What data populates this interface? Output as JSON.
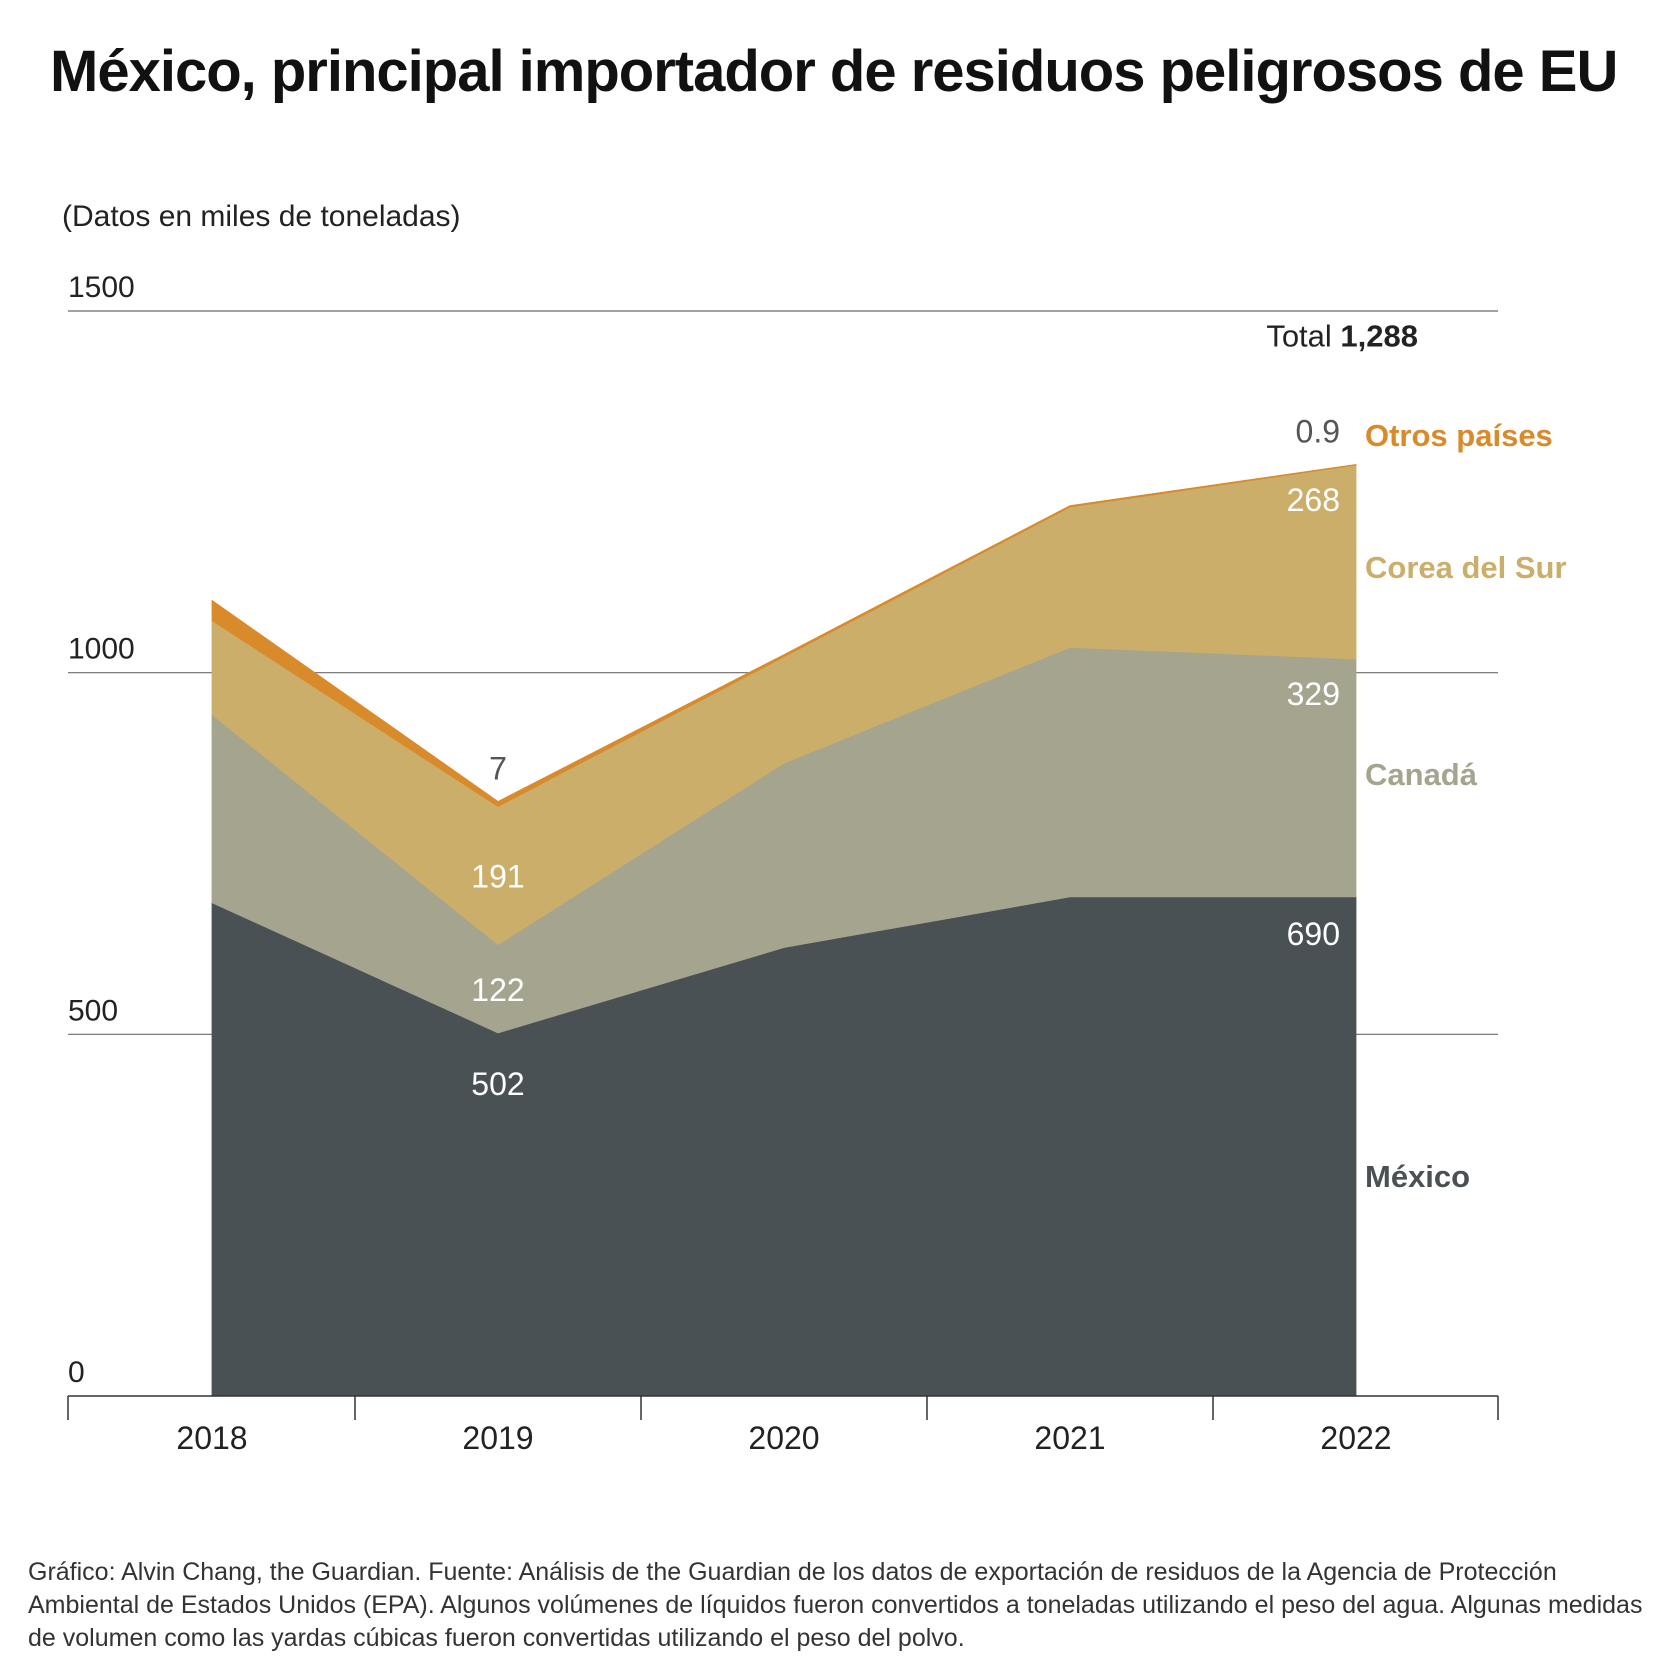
{
  "title": "México, principal importador de residuos peligrosos de EU",
  "subtitle": "(Datos en miles de toneladas)",
  "source": "Gráfico: Alvin Chang, the Guardian. Fuente: Análisis de the Guardian de los datos de exportación de residuos de la Agencia de Protección Ambiental de Estados Unidos (EPA). Algunos volúmenes de líquidos fueron convertidos a toneladas utilizando el peso del agua. Algunas medidas de volumen como las yardas cúbicas fueron convertidas utilizando el peso del polvo.",
  "chart_data": {
    "type": "area",
    "stacked": true,
    "x": [
      "2018",
      "2019",
      "2020",
      "2021",
      "2022"
    ],
    "yticks": [
      0,
      500,
      1000,
      1500
    ],
    "ylim": [
      0,
      1500
    ],
    "series": [
      {
        "name": "México",
        "color": "#4a5155",
        "values": [
          682,
          502,
          620,
          690,
          690
        ]
      },
      {
        "name": "Canadá",
        "color": "#a5a58f",
        "values": [
          260,
          122,
          255,
          345,
          329
        ]
      },
      {
        "name": "Corea del Sur",
        "color": "#cbae6a",
        "values": [
          130,
          191,
          147,
          194,
          268
        ]
      },
      {
        "name": "Otros países",
        "color": "#d98a2a",
        "values": [
          28,
          7,
          3,
          2,
          0.9
        ]
      }
    ],
    "total_label": "Total",
    "total_value": "1,288",
    "value_labels": [
      {
        "series": "Otros países",
        "x": "2019",
        "text": "7"
      },
      {
        "series": "Corea del Sur",
        "x": "2019",
        "text": "191"
      },
      {
        "series": "Canadá",
        "x": "2019",
        "text": "122"
      },
      {
        "series": "México",
        "x": "2019",
        "text": "502"
      },
      {
        "series": "Otros países",
        "x": "2022",
        "text": "0.9"
      },
      {
        "series": "Corea del Sur",
        "x": "2022",
        "text": "268"
      },
      {
        "series": "Canadá",
        "x": "2022",
        "text": "329"
      },
      {
        "series": "México",
        "x": "2022",
        "text": "690"
      }
    ],
    "legend_labels": [
      {
        "text": "Otros países",
        "color": "#d98a2a"
      },
      {
        "text": "Corea del Sur",
        "color": "#cbae6a"
      },
      {
        "text": "Canadá",
        "color": "#a5a58f"
      },
      {
        "text": "México",
        "color": "#4a5155"
      }
    ]
  }
}
